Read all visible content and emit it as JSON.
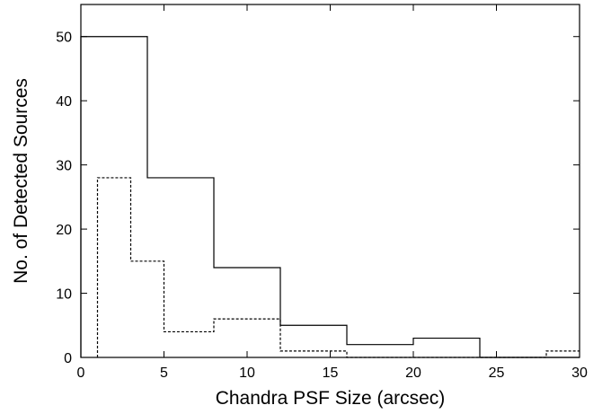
{
  "chart_data": {
    "type": "histogram",
    "xlabel": "Chandra PSF Size (arcsec)",
    "ylabel": "No. of Detected Sources",
    "xlim": [
      0,
      30
    ],
    "ylim": [
      0,
      55
    ],
    "xticks": [
      0,
      5,
      10,
      15,
      20,
      25,
      30
    ],
    "yticks": [
      0,
      10,
      20,
      30,
      40,
      50
    ],
    "grid": false,
    "legend": "none",
    "series": [
      {
        "style": "solid",
        "color": "#000000",
        "bins": [
          {
            "x0": 0,
            "x1": 4,
            "count": 50
          },
          {
            "x0": 4,
            "x1": 8,
            "count": 28
          },
          {
            "x0": 8,
            "x1": 12,
            "count": 14
          },
          {
            "x0": 12,
            "x1": 16,
            "count": 5
          },
          {
            "x0": 16,
            "x1": 20,
            "count": 2
          },
          {
            "x0": 20,
            "x1": 24,
            "count": 3
          },
          {
            "x0": 24,
            "x1": 28,
            "count": 0
          },
          {
            "x0": 28,
            "x1": 30,
            "count": 0
          }
        ]
      },
      {
        "style": "dashed",
        "color": "#000000",
        "bins": [
          {
            "x0": 1,
            "x1": 3,
            "count": 28
          },
          {
            "x0": 3,
            "x1": 5,
            "count": 15
          },
          {
            "x0": 5,
            "x1": 8,
            "count": 4
          },
          {
            "x0": 8,
            "x1": 12,
            "count": 6
          },
          {
            "x0": 12,
            "x1": 16,
            "count": 1
          },
          {
            "x0": 16,
            "x1": 28,
            "count": 0
          },
          {
            "x0": 28,
            "x1": 30,
            "count": 1
          }
        ]
      }
    ]
  }
}
